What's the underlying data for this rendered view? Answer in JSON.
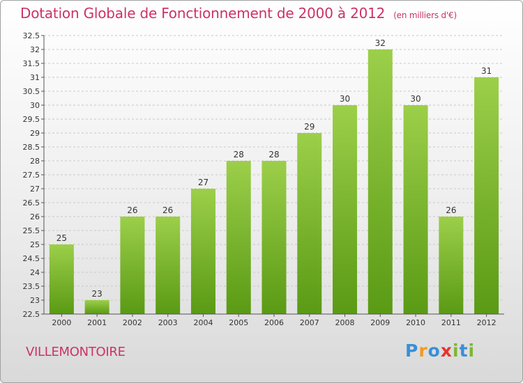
{
  "title": "Dotation Globale de Fonctionnement de 2000 à 2012",
  "subtitle": "(en milliers d'€)",
  "place": "VILLEMONTOIRE",
  "logo": {
    "text": "Proxiti",
    "letters": [
      {
        "ch": "P",
        "color": "#3a8fd6"
      },
      {
        "ch": "r",
        "color": "#f29a1f"
      },
      {
        "ch": "o",
        "color": "#3a8fd6"
      },
      {
        "ch": "x",
        "color": "#e8322e"
      },
      {
        "ch": "i",
        "color": "#7cb82f"
      },
      {
        "ch": "t",
        "color": "#3a8fd6"
      },
      {
        "ch": "i",
        "color": "#7cb82f"
      }
    ]
  },
  "colors": {
    "accent_text": "#cc3366",
    "bar_top": "#9ccf4a",
    "bar_bottom": "#5a9a14"
  },
  "chart_data": {
    "type": "bar",
    "categories": [
      "2000",
      "2001",
      "2002",
      "2003",
      "2004",
      "2005",
      "2006",
      "2007",
      "2008",
      "2009",
      "2010",
      "2011",
      "2012"
    ],
    "values": [
      25,
      23,
      26,
      26,
      27,
      28,
      28,
      29,
      30,
      32,
      30,
      26,
      31
    ],
    "data_labels": [
      "25",
      "23",
      "26",
      "26",
      "27",
      "28",
      "28",
      "29",
      "30",
      "32",
      "30",
      "26",
      "31"
    ],
    "ylim": [
      22.5,
      32.5
    ],
    "yticks": [
      "22.5",
      "23",
      "23.5",
      "24",
      "24.5",
      "25",
      "25.5",
      "26",
      "26.5",
      "27",
      "27.5",
      "28",
      "28.5",
      "29",
      "29.5",
      "30",
      "30.5",
      "31",
      "31.5",
      "32",
      "32.5"
    ],
    "grid": true
  }
}
